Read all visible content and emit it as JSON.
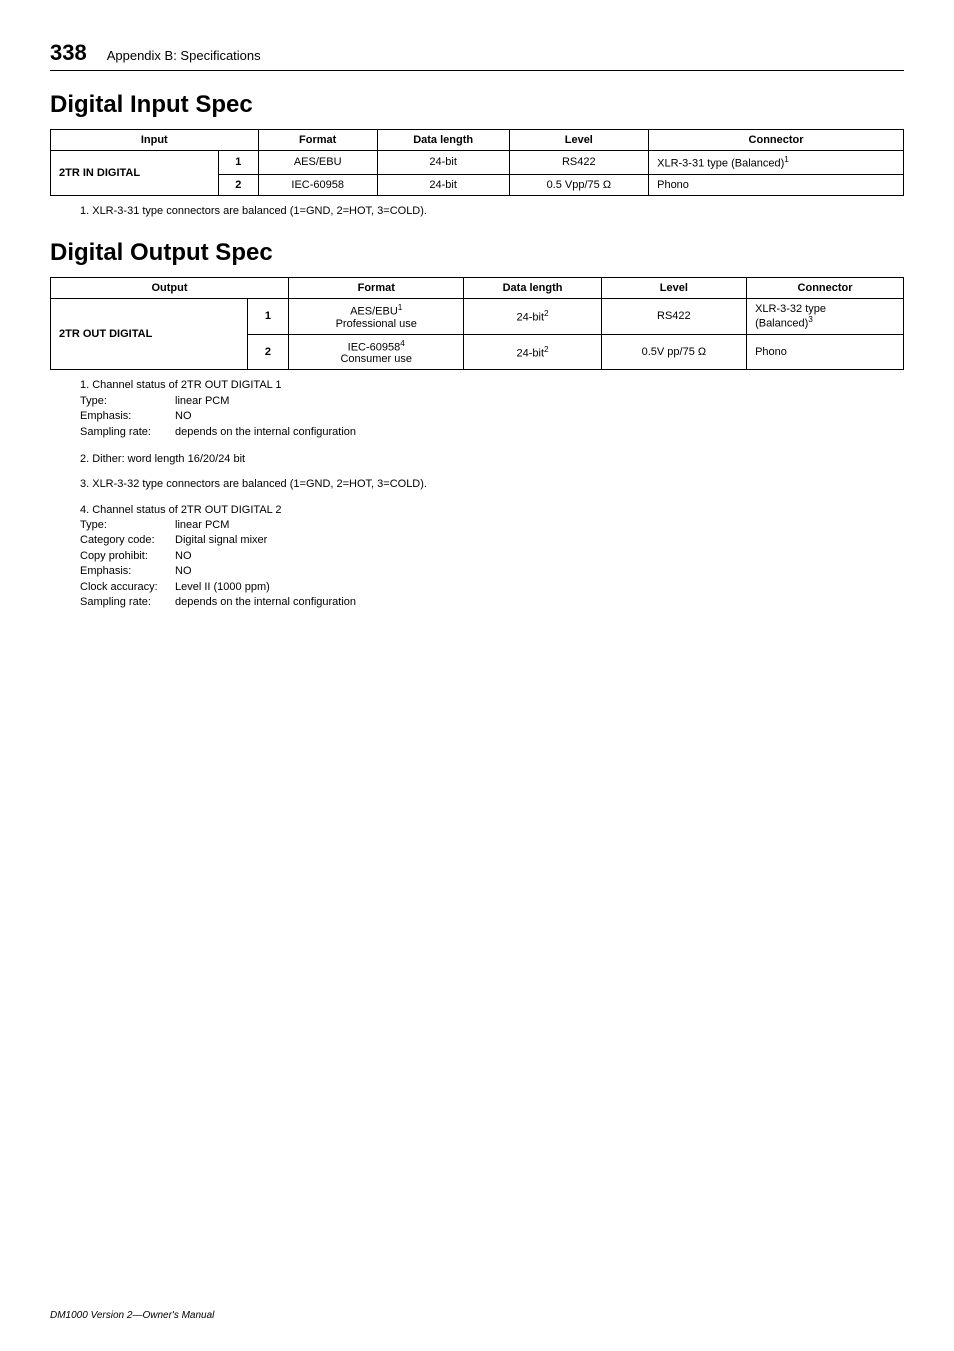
{
  "page": {
    "number": "338",
    "appendix": "Appendix B: Specifications",
    "footer": "DM1000 Version 2—Owner's Manual"
  },
  "input_section": {
    "title": "Digital Input Spec",
    "headers": [
      "Input",
      "Format",
      "Data length",
      "Level",
      "Connector"
    ],
    "group_label": "2TR IN DIGITAL",
    "rows": [
      {
        "idx": "1",
        "format": "AES/EBU",
        "data": "24-bit",
        "level": "RS422",
        "conn": "XLR-3-31 type (Balanced)",
        "conn_sup": "1"
      },
      {
        "idx": "2",
        "format": "IEC-60958",
        "data": "24-bit",
        "level": "0.5 Vpp/75 Ω",
        "conn": "Phono",
        "conn_sup": ""
      }
    ],
    "note1": "1.   XLR-3-31 type connectors are balanced (1=GND, 2=HOT, 3=COLD)."
  },
  "output_section": {
    "title": "Digital Output Spec",
    "headers": [
      "Output",
      "Format",
      "Data length",
      "Level",
      "Connector"
    ],
    "group_label": "2TR OUT DIGITAL",
    "rows": [
      {
        "idx": "1",
        "format_l1": "AES/EBU",
        "format_sup": "1",
        "format_l2": "Professional use",
        "data": "24-bit",
        "data_sup": "2",
        "level": "RS422",
        "conn_l1": "XLR-3-32 type",
        "conn_l2": "(Balanced)",
        "conn_sup": "3"
      },
      {
        "idx": "2",
        "format_l1": "IEC-60958",
        "format_sup": "4",
        "format_l2": "Consumer use",
        "data": "24-bit",
        "data_sup": "2",
        "level": "0.5V pp/75 Ω",
        "conn_l1": "Phono",
        "conn_l2": "",
        "conn_sup": ""
      }
    ],
    "note1": {
      "head": "1.   Channel status of 2TR OUT DIGITAL 1",
      "type_lbl": "Type:",
      "type_val": "linear PCM",
      "emph_lbl": "Emphasis:",
      "emph_val": "NO",
      "samp_lbl": "Sampling rate:",
      "samp_val": "depends on the internal configuration"
    },
    "note2": "2.   Dither: word length 16/20/24 bit",
    "note3": "3.   XLR-3-32 type connectors are balanced (1=GND, 2=HOT, 3=COLD).",
    "note4": {
      "head": "4.   Channel status of 2TR OUT DIGITAL 2",
      "type_lbl": "Type:",
      "type_val": "linear PCM",
      "cat_lbl": "Category code:",
      "cat_val": "Digital signal mixer",
      "copy_lbl": "Copy prohibit:",
      "copy_val": "NO",
      "emph_lbl": "Emphasis:",
      "emph_val": "NO",
      "clk_lbl": "Clock accuracy:",
      "clk_val": "Level II (1000 ppm)",
      "samp_lbl": "Sampling rate:",
      "samp_val": "depends on the internal configuration"
    }
  }
}
